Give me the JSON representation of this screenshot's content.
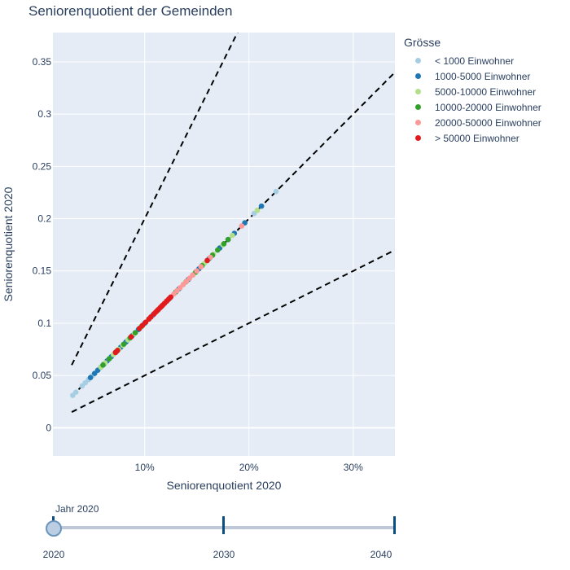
{
  "title": "Seniorenquotient der Gemeinden",
  "legend": {
    "title": "Grösse",
    "items": [
      {
        "label": "< 1000 Einwohner",
        "color": "#a6cee3"
      },
      {
        "label": "1000-5000 Einwohner",
        "color": "#1f78b4"
      },
      {
        "label": "5000-10000 Einwohner",
        "color": "#b2df8a"
      },
      {
        "label": "10000-20000 Einwohner",
        "color": "#33a02c"
      },
      {
        "label": "20000-50000 Einwohner",
        "color": "#fb9a99"
      },
      {
        "label": "> 50000 Einwohner",
        "color": "#e31a1c"
      }
    ]
  },
  "slider": {
    "current_label": "Jahr 2020",
    "steps": [
      "2020",
      "2030",
      "2040"
    ],
    "active_index": 0
  },
  "chart_data": {
    "type": "scatter",
    "title": "Seniorenquotient der Gemeinden",
    "xlabel": "Seniorenquotient 2020",
    "ylabel": "Seniorenquotient 2020",
    "xlim": [
      0.012,
      0.34
    ],
    "ylim": [
      -0.027,
      0.378
    ],
    "x_ticks": [
      {
        "value": 0.1,
        "label": "10%"
      },
      {
        "value": 0.2,
        "label": "20%"
      },
      {
        "value": 0.3,
        "label": "30%"
      }
    ],
    "y_ticks": [
      {
        "value": 0,
        "label": "0"
      },
      {
        "value": 0.05,
        "label": "0.05"
      },
      {
        "value": 0.1,
        "label": "0.1"
      },
      {
        "value": 0.15,
        "label": "0.15"
      },
      {
        "value": 0.2,
        "label": "0.2"
      },
      {
        "value": 0.25,
        "label": "0.25"
      },
      {
        "value": 0.3,
        "label": "0.3"
      },
      {
        "value": 0.35,
        "label": "0.35"
      }
    ],
    "reference_lines": [
      {
        "name": "factor 2",
        "x": [
          0.03,
          0.19
        ],
        "y": [
          0.06,
          0.38
        ]
      },
      {
        "name": "factor 1",
        "x": [
          0.03,
          0.34
        ],
        "y": [
          0.03,
          0.34
        ]
      },
      {
        "name": "factor 0.5",
        "x": [
          0.03,
          0.34
        ],
        "y": [
          0.015,
          0.17
        ]
      }
    ],
    "series": [
      {
        "name": "< 1000 Einwohner",
        "color": "#a6cee3",
        "x": [
          0.031,
          0.034,
          0.04,
          0.043,
          0.046,
          0.05,
          0.058,
          0.066,
          0.074,
          0.083,
          0.095,
          0.11,
          0.125,
          0.137,
          0.146,
          0.16,
          0.172,
          0.18,
          0.193,
          0.205,
          0.226
        ]
      },
      {
        "name": "1000-5000 Einwohner",
        "color": "#1f78b4",
        "x": [
          0.048,
          0.052,
          0.055,
          0.058,
          0.061,
          0.064,
          0.068,
          0.072,
          0.077,
          0.082,
          0.088,
          0.094,
          0.1,
          0.108,
          0.116,
          0.124,
          0.133,
          0.142,
          0.152,
          0.162,
          0.172,
          0.18,
          0.186,
          0.196,
          0.212
        ]
      },
      {
        "name": "5000-10000 Einwohner",
        "color": "#b2df8a",
        "x": [
          0.058,
          0.062,
          0.066,
          0.07,
          0.075,
          0.079,
          0.084,
          0.09,
          0.097,
          0.104,
          0.113,
          0.122,
          0.13,
          0.139,
          0.148,
          0.157,
          0.166,
          0.175,
          0.184,
          0.208
        ]
      },
      {
        "name": "10000-20000 Einwohner",
        "color": "#33a02c",
        "x": [
          0.06,
          0.066,
          0.073,
          0.08,
          0.086,
          0.091,
          0.097,
          0.104,
          0.112,
          0.121,
          0.13,
          0.14,
          0.149,
          0.155,
          0.16,
          0.165,
          0.17,
          0.176,
          0.18
        ]
      },
      {
        "name": "20000-50000 Einwohner",
        "color": "#fb9a99",
        "x": [
          0.106,
          0.11,
          0.114,
          0.118,
          0.122,
          0.125,
          0.128,
          0.131,
          0.134,
          0.137,
          0.14,
          0.143,
          0.146,
          0.15,
          0.154,
          0.163,
          0.193
        ]
      },
      {
        "name": "> 50000 Einwohner",
        "color": "#e31a1c",
        "x": [
          0.072,
          0.074,
          0.087,
          0.095,
          0.098,
          0.101,
          0.104,
          0.106,
          0.109,
          0.111,
          0.113,
          0.115,
          0.117,
          0.119,
          0.121,
          0.123,
          0.125,
          0.16
        ]
      }
    ]
  }
}
